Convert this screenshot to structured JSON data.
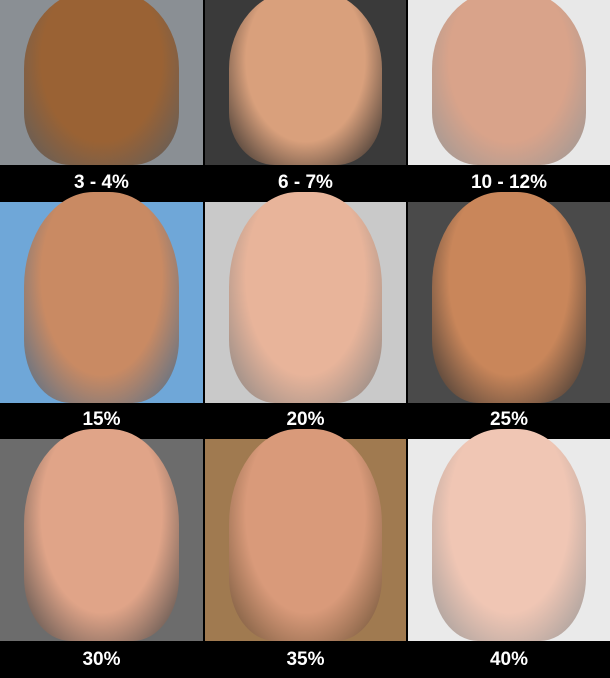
{
  "items": [
    {
      "label": "3 - 4%",
      "bg": "#8a8f94",
      "skin": "#9a6234"
    },
    {
      "label": "6 - 7%",
      "bg": "#3a3a3a",
      "skin": "#d9a07c"
    },
    {
      "label": "10 - 12%",
      "bg": "#e8e8e8",
      "skin": "#d9a38a"
    },
    {
      "label": "15%",
      "bg": "#6fa7d8",
      "skin": "#c98a63"
    },
    {
      "label": "20%",
      "bg": "#c9c9c9",
      "skin": "#e8b49a"
    },
    {
      "label": "25%",
      "bg": "#4a4a4a",
      "skin": "#c9865a"
    },
    {
      "label": "30%",
      "bg": "#6c6c6c",
      "skin": "#e0a488"
    },
    {
      "label": "35%",
      "bg": "#a07a50",
      "skin": "#d99a7a"
    },
    {
      "label": "40%",
      "bg": "#eaeaea",
      "skin": "#f0c6b4"
    }
  ]
}
